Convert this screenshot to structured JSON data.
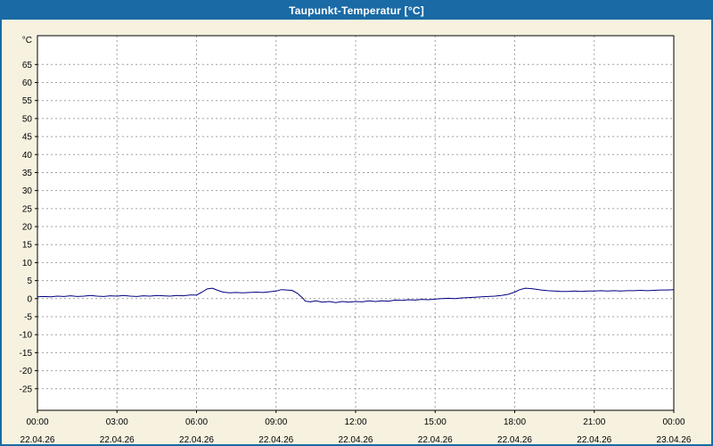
{
  "window": {
    "title": "Taupunkt-Temperatur [°C]"
  },
  "colors": {
    "titlebar_bg": "#1a6aa5",
    "window_bg": "#f6f2df",
    "plot_bg": "#ffffff",
    "plot_frame": "#000000",
    "grid": "#a0a0a0",
    "tick_text": "#000000",
    "series": "#000080"
  },
  "chart_data": {
    "type": "line",
    "title": "Taupunkt-Temperatur [°C]",
    "y_axis_unit": "°C",
    "xlabel": "",
    "ylabel": "°C",
    "xlim": [
      0,
      24
    ],
    "ylim": [
      -31,
      73
    ],
    "grid": true,
    "legend": "none",
    "y_ticks": [
      -25,
      -20,
      -15,
      -10,
      -5,
      0,
      5,
      10,
      15,
      20,
      25,
      30,
      35,
      40,
      45,
      50,
      55,
      60,
      65
    ],
    "x_ticks": [
      {
        "h": 0,
        "time": "00:00",
        "date": "22.04.26"
      },
      {
        "h": 3,
        "time": "03:00",
        "date": "22.04.26"
      },
      {
        "h": 6,
        "time": "06:00",
        "date": "22.04.26"
      },
      {
        "h": 9,
        "time": "09:00",
        "date": "22.04.26"
      },
      {
        "h": 12,
        "time": "12:00",
        "date": "22.04.26"
      },
      {
        "h": 15,
        "time": "15:00",
        "date": "22.04.26"
      },
      {
        "h": 18,
        "time": "18:00",
        "date": "22.04.26"
      },
      {
        "h": 21,
        "time": "21:00",
        "date": "22.04.26"
      },
      {
        "h": 24,
        "time": "00:00",
        "date": "23.04.26"
      }
    ],
    "series": [
      {
        "name": "Taupunkt-Temperatur",
        "color": "#000080",
        "points": [
          [
            0,
            0.5
          ],
          [
            0.25,
            0.6
          ],
          [
            0.5,
            0.5
          ],
          [
            0.75,
            0.7
          ],
          [
            1,
            0.6
          ],
          [
            1.25,
            0.8
          ],
          [
            1.5,
            0.6
          ],
          [
            1.75,
            0.7
          ],
          [
            2,
            0.9
          ],
          [
            2.25,
            0.7
          ],
          [
            2.5,
            0.6
          ],
          [
            2.75,
            0.8
          ],
          [
            3,
            0.7
          ],
          [
            3.25,
            0.9
          ],
          [
            3.5,
            0.7
          ],
          [
            3.75,
            0.6
          ],
          [
            4,
            0.8
          ],
          [
            4.25,
            0.7
          ],
          [
            4.5,
            0.9
          ],
          [
            4.75,
            0.8
          ],
          [
            5,
            0.7
          ],
          [
            5.25,
            0.9
          ],
          [
            5.5,
            0.8
          ],
          [
            5.75,
            1.0
          ],
          [
            6,
            1.0
          ],
          [
            6.2,
            1.8
          ],
          [
            6.4,
            2.7
          ],
          [
            6.6,
            2.9
          ],
          [
            6.8,
            2.3
          ],
          [
            7,
            1.8
          ],
          [
            7.25,
            1.6
          ],
          [
            7.5,
            1.7
          ],
          [
            7.75,
            1.6
          ],
          [
            8,
            1.7
          ],
          [
            8.25,
            1.8
          ],
          [
            8.5,
            1.7
          ],
          [
            8.75,
            1.9
          ],
          [
            9,
            2.1
          ],
          [
            9.2,
            2.5
          ],
          [
            9.4,
            2.4
          ],
          [
            9.6,
            2.3
          ],
          [
            9.8,
            1.5
          ],
          [
            10,
            0.2
          ],
          [
            10.1,
            -0.7
          ],
          [
            10.3,
            -0.9
          ],
          [
            10.5,
            -0.6
          ],
          [
            10.75,
            -1.0
          ],
          [
            11,
            -0.8
          ],
          [
            11.25,
            -1.1
          ],
          [
            11.5,
            -0.8
          ],
          [
            11.75,
            -1.0
          ],
          [
            12,
            -0.8
          ],
          [
            12.25,
            -0.9
          ],
          [
            12.5,
            -0.6
          ],
          [
            12.75,
            -0.8
          ],
          [
            13,
            -0.6
          ],
          [
            13.25,
            -0.7
          ],
          [
            13.5,
            -0.4
          ],
          [
            13.75,
            -0.5
          ],
          [
            14,
            -0.3
          ],
          [
            14.25,
            -0.4
          ],
          [
            14.5,
            -0.2
          ],
          [
            14.75,
            -0.3
          ],
          [
            15,
            -0.1
          ],
          [
            15.25,
            0.0
          ],
          [
            15.5,
            0.1
          ],
          [
            15.75,
            0.0
          ],
          [
            16,
            0.2
          ],
          [
            16.25,
            0.3
          ],
          [
            16.5,
            0.4
          ],
          [
            16.75,
            0.5
          ],
          [
            17,
            0.6
          ],
          [
            17.25,
            0.7
          ],
          [
            17.5,
            0.9
          ],
          [
            17.75,
            1.2
          ],
          [
            18,
            1.8
          ],
          [
            18.2,
            2.5
          ],
          [
            18.4,
            2.9
          ],
          [
            18.6,
            2.8
          ],
          [
            18.8,
            2.6
          ],
          [
            19,
            2.4
          ],
          [
            19.25,
            2.2
          ],
          [
            19.5,
            2.1
          ],
          [
            19.75,
            2.0
          ],
          [
            20,
            2.0
          ],
          [
            20.25,
            2.1
          ],
          [
            20.5,
            2.0
          ],
          [
            20.75,
            2.1
          ],
          [
            21,
            2.1
          ],
          [
            21.25,
            2.2
          ],
          [
            21.5,
            2.1
          ],
          [
            21.75,
            2.2
          ],
          [
            22,
            2.1
          ],
          [
            22.25,
            2.2
          ],
          [
            22.5,
            2.2
          ],
          [
            22.75,
            2.3
          ],
          [
            23,
            2.2
          ],
          [
            23.25,
            2.3
          ],
          [
            23.5,
            2.4
          ],
          [
            23.75,
            2.4
          ],
          [
            24,
            2.5
          ]
        ]
      }
    ]
  }
}
